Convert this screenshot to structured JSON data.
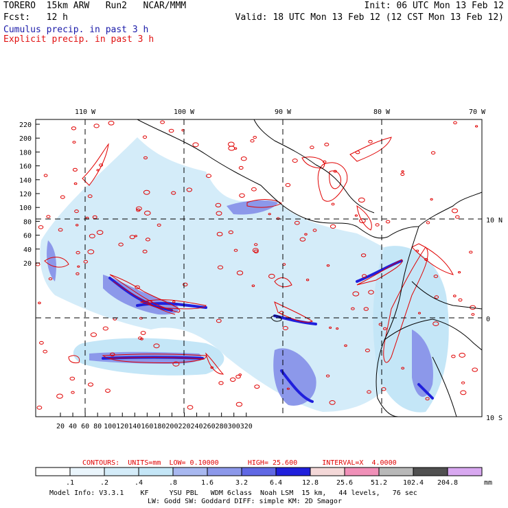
{
  "header": {
    "model_title": "TORERO  15km ARW   Run2   NCAR/MMM",
    "init_line": "Init: 06 UTC Mon 13 Feb 12",
    "fcst_line": "Fcst:   12 h",
    "valid_line": "Valid: 18 UTC Mon 13 Feb 12 (12 CST Mon 13 Feb 12)",
    "field1": "Cumulus precip. in past 3 h",
    "field2": "Explicit precip. in past 3 h"
  },
  "colors": {
    "field1": "#1a1aa8",
    "field2": "#e01010",
    "contour": "#e00000"
  },
  "map": {
    "lon_labels": [
      "110 W",
      "100 W",
      "90 W",
      "80 W",
      "70 W"
    ],
    "lat_labels": [
      "10 N",
      "0",
      "10 S"
    ],
    "y_ticks": [
      "220",
      "200",
      "180",
      "160",
      "140",
      "120",
      "100",
      "80",
      "60",
      "40",
      "20"
    ],
    "x_ticks": [
      "20",
      "40",
      "60",
      "80",
      "100",
      "120",
      "140",
      "160",
      "180",
      "200",
      "220",
      "240",
      "260",
      "280",
      "300",
      "320"
    ]
  },
  "contours": {
    "label": "CONTOURS:",
    "units": "UNITS=mm",
    "low": "LOW= 0.10000",
    "high": "HIGH= 25.600",
    "interval": "INTERVAL=X  4.0000"
  },
  "colorbar": {
    "colors": [
      "#ffffff",
      "#eaf5fc",
      "#d4ecf9",
      "#c4e6f7",
      "#a8b8f0",
      "#8c98ea",
      "#6068e4",
      "#2020dc",
      "#f4d8d8",
      "#f090b8",
      "#b8b8b8",
      "#505050",
      "#d8a8f0"
    ],
    "labels": [
      ".1",
      ".2",
      ".4",
      ".8",
      "1.6",
      "3.2",
      "6.4",
      "12.8",
      "25.6",
      "51.2",
      "102.4",
      "204.8"
    ],
    "unit": "mm"
  },
  "footer": {
    "line1": "Model Info: V3.3.1    KF     YSU PBL   WDM 6class  Noah LSM  15 km,   44 levels,   76 sec",
    "line2": "LW: Godd SW: Goddard DIFF: simple KM: 2D Smagor"
  }
}
